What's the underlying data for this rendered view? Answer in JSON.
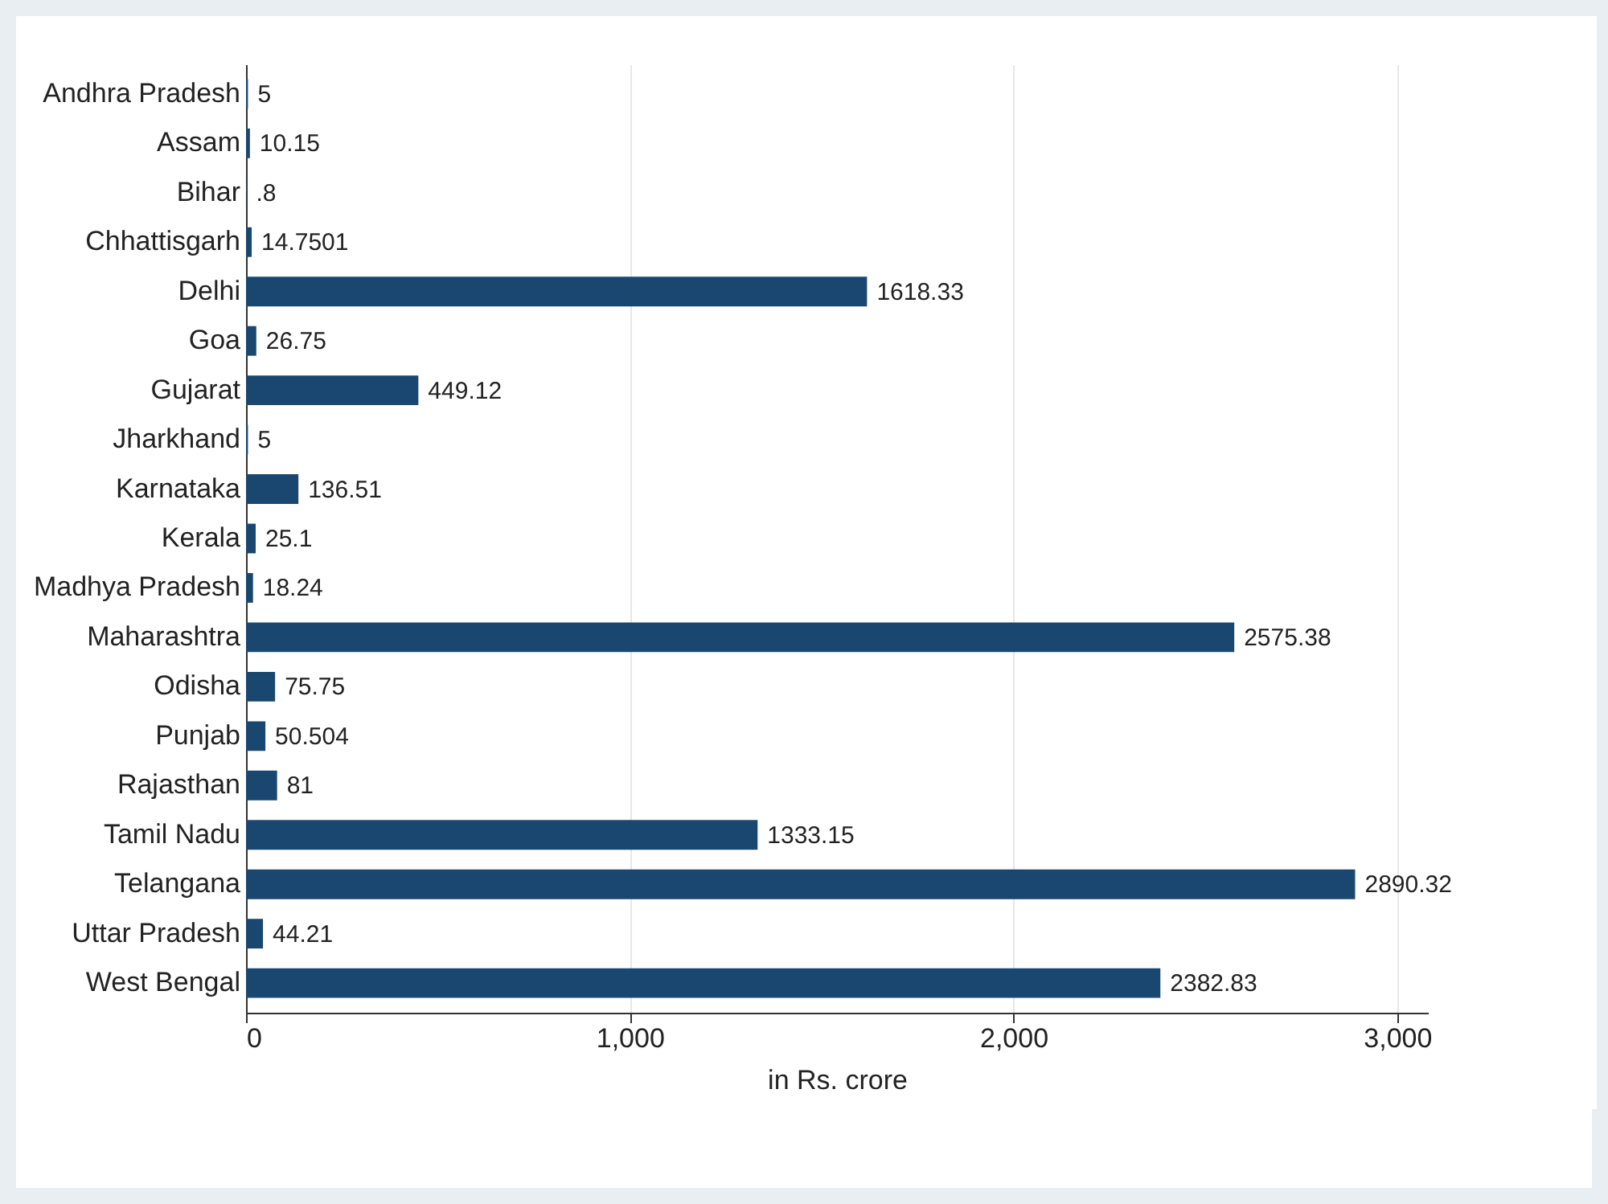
{
  "chart_data": {
    "type": "bar",
    "orientation": "horizontal",
    "xlabel": "in Rs. crore",
    "categories": [
      "Andhra Pradesh",
      "Assam",
      "Bihar",
      "Chhattisgarh",
      "Delhi",
      "Goa",
      "Gujarat",
      "Jharkhand",
      "Karnataka",
      "Kerala",
      "Madhya Pradesh",
      "Maharashtra",
      "Odisha",
      "Punjab",
      "Rajasthan",
      "Tamil Nadu",
      "Telangana",
      "Uttar Pradesh",
      "West Bengal"
    ],
    "values": [
      5,
      10.15,
      0.8,
      14.7501,
      1618.33,
      26.75,
      449.12,
      5,
      136.51,
      25.1,
      18.24,
      2575.38,
      75.75,
      50.504,
      81,
      1333.15,
      2890.32,
      44.21,
      2382.83
    ],
    "value_labels": [
      "5",
      "10.15",
      ".8",
      "14.7501",
      "1618.33",
      "26.75",
      "449.12",
      "5",
      "136.51",
      "25.1",
      "18.24",
      "2575.38",
      "75.75",
      "50.504",
      "81",
      "1333.15",
      "2890.32",
      "44.21",
      "2382.83"
    ],
    "color": "#1a476f",
    "xlim": [
      0,
      3080
    ],
    "xticks": [
      0,
      {
        "value": 1000,
        "label": "1,000"
      },
      {
        "value": 2000,
        "label": "2,000"
      },
      {
        "value": 3000,
        "label": "3,000"
      }
    ],
    "grid": "x"
  }
}
